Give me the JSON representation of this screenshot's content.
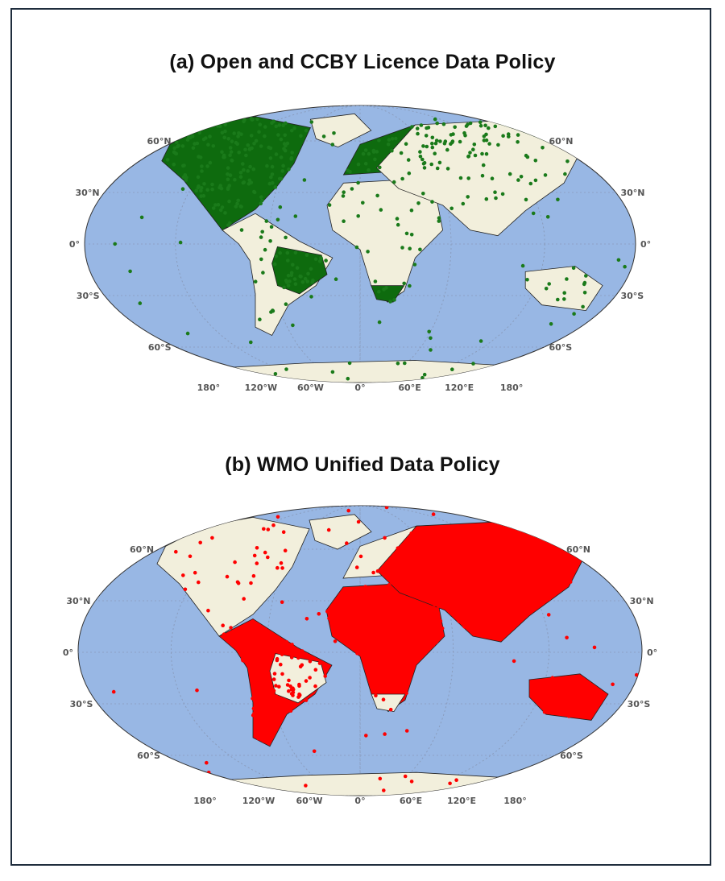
{
  "panels": [
    {
      "id": "a",
      "title": "(a) Open and CCBY Licence Data Policy",
      "point_color": "#1a7a1a",
      "fill_color": "#0e6b0e",
      "filled_regions": [
        "north-america",
        "brazil",
        "europe",
        "south-africa"
      ],
      "marker": "green-dot-icon"
    },
    {
      "id": "b",
      "title": "(b) WMO Unified Data Policy",
      "point_color": "#ff0000",
      "fill_color": "#ff0000",
      "filled_regions": [
        "latin-america",
        "africa",
        "russia-asia",
        "australia"
      ],
      "marker": "red-dot-icon"
    }
  ],
  "map_style": {
    "projection": "Robinson",
    "ocean_color": "#98b7e4",
    "land_color": "#f2efdc",
    "gridlines": true
  },
  "axis_labels": {
    "lat_left": [
      "60°N",
      "30°N",
      "0°",
      "30°S",
      "60°S"
    ],
    "lat_right": [
      "60°N",
      "30°N",
      "0°",
      "30°S",
      "60°S"
    ],
    "lon": [
      "180°",
      "120°W",
      "60°W",
      "0°",
      "60°E",
      "120°E",
      "180°"
    ]
  }
}
